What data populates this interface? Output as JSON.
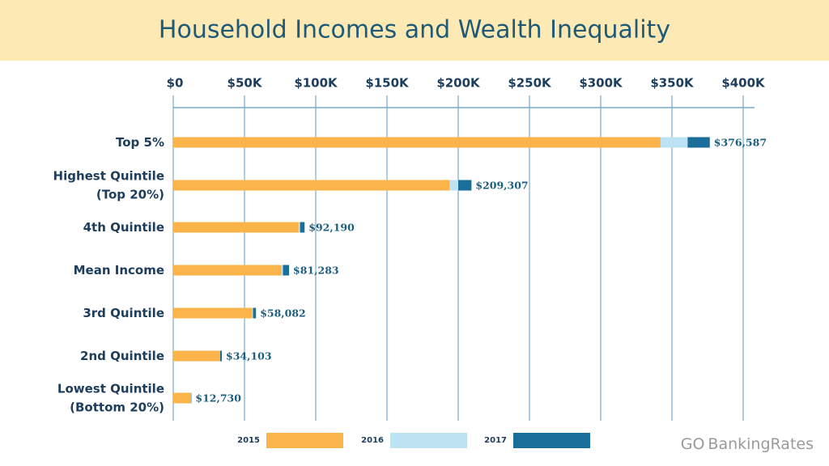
{
  "chart_data": {
    "type": "stacked-barh",
    "title": "Household Incomes and Wealth Inequality",
    "categories": [
      [
        "Top 5%"
      ],
      [
        "Highest Quintile",
        "(Top 20%)"
      ],
      [
        "4th Quintile"
      ],
      [
        "Mean Income"
      ],
      [
        "3rd Quintile"
      ],
      [
        "2nd Quintile"
      ],
      [
        "Lowest Quintile",
        "(Bottom 20%)"
      ]
    ],
    "series": [
      {
        "name": "2015",
        "color": "#fbb44a",
        "values": [
          342000,
          194000,
          88000,
          76000,
          55500,
          32500,
          12200
        ]
      },
      {
        "name": "2016",
        "color": "#bde3f3",
        "values": [
          19000,
          6000,
          1000,
          1000,
          500,
          300,
          200
        ]
      },
      {
        "name": "2017",
        "color": "#1a6f9a",
        "values": [
          15587,
          9307,
          3190,
          4283,
          2082,
          1303,
          330
        ]
      }
    ],
    "totals": [
      376587,
      209307,
      92190,
      81283,
      58082,
      34103,
      12730
    ],
    "total_labels": [
      "$376,587",
      "$209,307",
      "$92,190",
      "$81,283",
      "$58,082",
      "$34,103",
      "$12,730"
    ],
    "xlim": [
      0,
      400000
    ],
    "xticks": [
      {
        "value": 0,
        "label": "$0"
      },
      {
        "value": 50000,
        "label": "$50K"
      },
      {
        "value": 100000,
        "label": "$100K"
      },
      {
        "value": 150000,
        "label": "$150K"
      },
      {
        "value": 200000,
        "label": "$200K"
      },
      {
        "value": 250000,
        "label": "$250K"
      },
      {
        "value": 300000,
        "label": "$300K"
      },
      {
        "value": 350000,
        "label": "$350K"
      },
      {
        "value": 400000,
        "label": "$400K"
      }
    ],
    "grid": true,
    "logo": {
      "go": "GO",
      "name": "BankingRates"
    }
  }
}
